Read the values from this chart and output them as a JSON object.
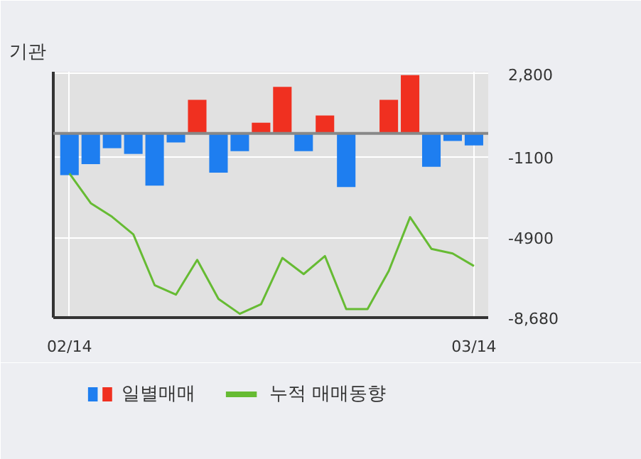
{
  "chart_data": {
    "type": "bar",
    "title": "기관",
    "categories": [
      "02/14",
      null,
      null,
      null,
      null,
      null,
      null,
      null,
      null,
      null,
      null,
      null,
      null,
      null,
      null,
      null,
      null,
      null,
      null,
      "03/14"
    ],
    "series": [
      {
        "name": "일별매매",
        "colors": [
          "#1e7ef0",
          "#1e7ef0",
          "#1e7ef0",
          "#1e7ef0",
          "#1e7ef0",
          "#1e7ef0",
          "#f03020",
          "#1e7ef0",
          "#1e7ef0",
          "#f03020",
          "#f03020",
          "#1e7ef0",
          "#f03020",
          "#1e7ef0",
          "#1e7ef0",
          "#f03020",
          "#f03020",
          "#1e7ef0",
          "#1e7ef0",
          "#1e7ef0"
        ],
        "values": [
          -1970,
          -1450,
          -700,
          -970,
          -2460,
          -430,
          1580,
          -1850,
          -840,
          500,
          2190,
          -840,
          840,
          -2530,
          0,
          1580,
          2740,
          -1580,
          -360,
          -570
        ]
      },
      {
        "name": "누적 매매동향",
        "type": "line",
        "color": "#66bb33",
        "values": [
          -1890,
          -3290,
          -3930,
          -4760,
          -7150,
          -7600,
          -5960,
          -7800,
          -8500,
          -8050,
          -5870,
          -6630,
          -5780,
          -8280,
          -8280,
          -6480,
          -3950,
          -5440,
          -5660,
          -6250
        ]
      }
    ],
    "ylim": [
      -8680,
      2900
    ],
    "yticks": [
      {
        "value": 2800,
        "label": "2,800"
      },
      -1100,
      -4900,
      {
        "value": -8680,
        "label": "-8,680"
      }
    ],
    "ref_lines": [
      {
        "axis": "y",
        "value": 0,
        "color": "#888888"
      }
    ],
    "grid": true,
    "legend": "bottom"
  }
}
